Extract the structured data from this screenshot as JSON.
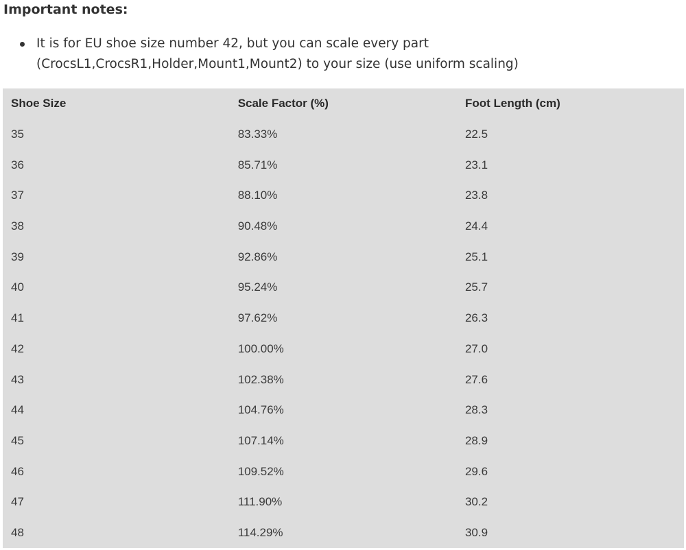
{
  "notes": {
    "title": "Important notes:",
    "items": [
      "It is for EU shoe size number 42, but you can scale every part (CrocsL1,CrocsR1,Holder,Mount1,Mount2) to your size (use uniform scaling)"
    ]
  },
  "table": {
    "headers": [
      "Shoe Size",
      "Scale Factor (%)",
      "Foot Length (cm)"
    ],
    "rows": [
      [
        "35",
        "83.33%",
        "22.5"
      ],
      [
        "36",
        "85.71%",
        "23.1"
      ],
      [
        "37",
        "88.10%",
        "23.8"
      ],
      [
        "38",
        "90.48%",
        "24.4"
      ],
      [
        "39",
        "92.86%",
        "25.1"
      ],
      [
        "40",
        "95.24%",
        "25.7"
      ],
      [
        "41",
        "97.62%",
        "26.3"
      ],
      [
        "42",
        "100.00%",
        "27.0"
      ],
      [
        "43",
        "102.38%",
        "27.6"
      ],
      [
        "44",
        "104.76%",
        "28.3"
      ],
      [
        "45",
        "107.14%",
        "28.9"
      ],
      [
        "46",
        "109.52%",
        "29.6"
      ],
      [
        "47",
        "111.90%",
        "30.2"
      ],
      [
        "48",
        "114.29%",
        "30.9"
      ]
    ]
  }
}
